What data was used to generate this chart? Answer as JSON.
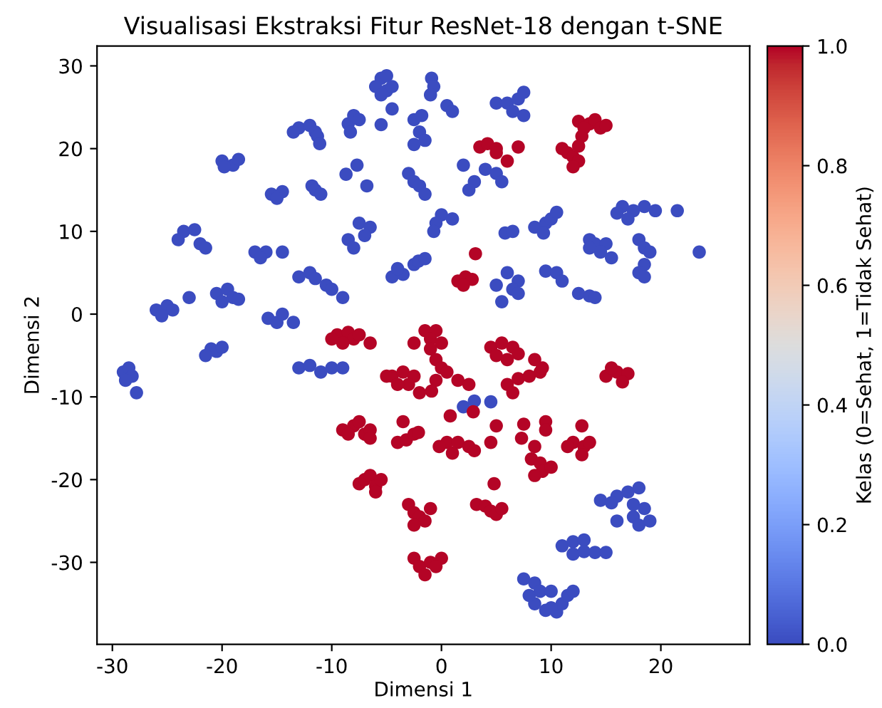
{
  "chart_data": {
    "type": "scatter",
    "title": "Visualisasi Ekstraksi Fitur ResNet-18 dengan t-SNE",
    "xlabel": "Dimensi 1",
    "ylabel": "Dimensi 2",
    "clabel": "Kelas (0=Sehat, 1=Tidak Sehat)",
    "xlim": [
      -31.4,
      28.1
    ],
    "ylim": [
      -39.9,
      32.4
    ],
    "xticks": [
      -30,
      -20,
      -10,
      0,
      10,
      20
    ],
    "yticks": [
      -30,
      -20,
      -10,
      0,
      10,
      20,
      30
    ],
    "clim": [
      0,
      1
    ],
    "cticks": [
      {
        "value": 0,
        "label": "0.0"
      },
      {
        "value": 0.2,
        "label": "0.2"
      },
      {
        "value": 0.4,
        "label": "0.4"
      },
      {
        "value": 0.6,
        "label": "0.6"
      },
      {
        "value": 0.8,
        "label": "0.8"
      },
      {
        "value": 1,
        "label": "1.0"
      }
    ],
    "marker": "circle",
    "grid": false,
    "legend": false,
    "series": [
      {
        "x": [
          -5.5,
          -5,
          -6,
          -5,
          -4.5,
          -5.5,
          -4.5,
          -5.5,
          -8.5,
          -8,
          -7.5,
          -8.3,
          -13,
          -12,
          -11.5,
          -13.5,
          -11.3,
          -11.1,
          -20,
          -19,
          -18.5,
          -19.8,
          -7.7,
          -8.7,
          -6.8,
          -15.5,
          -14.5,
          -15,
          -11.8,
          -11.5,
          -11,
          -7.5,
          -6.5,
          -7,
          -8.5,
          -8,
          -23.5,
          -22.5,
          -24,
          -22,
          -21.5,
          -17,
          -16,
          -16.5,
          -14.5,
          -13,
          -12,
          -11.5,
          -10.5,
          -10,
          -4.5,
          -3.5,
          -4,
          -2.5,
          -20.5,
          -19.5,
          -20,
          -19,
          -18.5,
          -23,
          -26,
          -25,
          -24.5,
          -25.5,
          -9,
          -15.8,
          -15,
          -14.5,
          -13.5,
          -21,
          -20.5,
          -21.5,
          -20,
          -29,
          -28.5,
          -28.2,
          -28.8,
          -27.8,
          -13,
          -12,
          -11,
          -10,
          -9,
          -0.9,
          -0.7,
          -1,
          0.5,
          1,
          -2.5,
          -2,
          -1.5,
          -2.5,
          -1.8,
          -3,
          -2.5,
          -2,
          -1.5,
          5,
          6,
          7,
          7.5,
          6.5,
          7.5,
          2,
          4,
          5,
          5.5,
          3,
          2.5,
          0,
          1,
          -0.5,
          -0.7,
          8.5,
          9.5,
          10,
          10.5,
          9.3,
          5.8,
          6.5,
          16.5,
          17.5,
          18.5,
          17,
          16,
          19.5,
          21.5,
          13.5,
          14,
          15,
          14.5,
          13.5,
          15.5,
          18,
          18.5,
          19,
          18.5,
          18,
          18.5,
          23.5,
          -2.1,
          -1.5,
          6,
          7,
          6.5,
          5,
          7,
          5.5,
          9.5,
          10.5,
          11,
          12.5,
          13.5,
          14,
          2,
          3,
          4.5,
          14.5,
          16,
          17,
          18,
          17.5,
          18.5,
          16,
          17.5,
          18,
          19,
          15.5,
          11,
          12,
          13,
          12,
          13,
          14,
          15,
          7.5,
          8.5,
          9,
          10,
          8.5,
          9.5,
          10.5,
          11,
          11.5,
          12,
          10,
          8
        ],
        "values": [
          28.5,
          28.8,
          27.5,
          27,
          27.5,
          26.5,
          24.8,
          22.9,
          23,
          24,
          23.5,
          22,
          22.5,
          22.8,
          22,
          22,
          21.5,
          20.6,
          18.5,
          18,
          18.7,
          17.8,
          18,
          16.9,
          15.5,
          14.5,
          14.8,
          14,
          15.5,
          15,
          14.5,
          11,
          10.5,
          9.5,
          9,
          8,
          10,
          10.2,
          9,
          8.5,
          8,
          7.5,
          7.5,
          6.8,
          7.5,
          4.5,
          5,
          4.3,
          3.5,
          3,
          4.5,
          4.8,
          5.5,
          6,
          2.5,
          3,
          1.5,
          2,
          1.8,
          2,
          0.5,
          1,
          0.5,
          -0.2,
          2,
          -0.5,
          -1,
          0,
          -1,
          -4.2,
          -4.5,
          -5,
          -4,
          -7,
          -6.5,
          -7.5,
          -8,
          -9.5,
          -6.5,
          -6.2,
          -7,
          -6.5,
          -6.5,
          28.5,
          27.5,
          26.5,
          25.2,
          24.5,
          23.5,
          22,
          21,
          20.5,
          24,
          17,
          16,
          15.5,
          14.5,
          25.5,
          25.5,
          26,
          26.8,
          24.5,
          24,
          18,
          17.5,
          17,
          16,
          16,
          15,
          12,
          11.5,
          11,
          10,
          10.5,
          11,
          11.5,
          12.3,
          9.8,
          9.8,
          10,
          13,
          12.5,
          13,
          11.5,
          12.2,
          12.5,
          12.5,
          9,
          8.5,
          8.5,
          7.5,
          8,
          6.8,
          9,
          8,
          7.5,
          6,
          5,
          4.5,
          7.5,
          6.4,
          6.7,
          5,
          4,
          3,
          3.5,
          2.5,
          1.5,
          5.2,
          5,
          4,
          2.5,
          2.2,
          2,
          -11.2,
          -10.5,
          -10.6,
          -22.5,
          -22,
          -21.5,
          -21,
          -23,
          -23.5,
          -25,
          -24.5,
          -25.5,
          -25,
          -22.8,
          -28,
          -27.5,
          -27.3,
          -29,
          -28.7,
          -28.8,
          -28.8,
          -32,
          -32.5,
          -33.5,
          -33.5,
          -35,
          -35.8,
          -36,
          -35,
          -34,
          -33.5,
          -35.5,
          -34
        ],
        "cvalues": [
          0,
          0,
          0,
          0,
          0,
          0,
          0,
          0,
          0,
          0,
          0,
          0,
          0,
          0,
          0,
          0,
          0,
          0,
          0,
          0,
          0,
          0,
          0,
          0,
          0,
          0,
          0,
          0,
          0,
          0,
          0,
          0,
          0,
          0,
          0,
          0,
          0,
          0,
          0,
          0,
          0,
          0,
          0,
          0,
          0,
          0,
          0,
          0,
          0,
          0,
          0,
          0,
          0,
          0,
          0,
          0,
          0,
          0,
          0,
          0,
          0,
          0,
          0,
          0,
          0,
          0,
          0,
          0,
          0,
          0,
          0,
          0,
          0,
          0,
          0,
          0,
          0,
          0,
          0,
          0,
          0,
          0,
          0,
          0,
          0,
          0,
          0,
          0,
          0,
          0,
          0,
          0,
          0,
          0,
          0,
          0,
          0,
          0,
          0,
          0,
          0,
          0,
          0,
          0,
          0,
          0,
          0,
          0,
          0,
          0,
          0,
          0,
          0,
          0,
          0,
          0,
          0,
          0,
          0,
          0,
          0,
          0,
          0,
          0,
          0,
          0,
          0,
          0,
          0,
          0,
          0,
          0,
          0,
          0,
          0,
          0,
          0,
          0,
          0,
          0,
          0,
          0,
          0,
          0,
          0,
          0,
          0,
          0,
          0,
          0,
          0,
          0,
          0,
          0,
          0,
          0,
          0,
          0,
          0,
          0,
          0,
          0,
          0,
          0,
          0,
          0,
          0,
          0,
          0,
          0,
          0,
          0,
          0,
          0,
          0,
          0,
          0,
          0,
          0,
          0,
          0,
          0,
          0,
          0,
          0,
          0,
          0
        ]
      },
      {
        "x": [
          12.5,
          13.5,
          14,
          14.5,
          13,
          15,
          12.8,
          11,
          11.5,
          12,
          12.5,
          12,
          12.5,
          3.5,
          4.2,
          5,
          5,
          7,
          6,
          3.1,
          1.5,
          2.2,
          2.8,
          2,
          -9.5,
          -8.5,
          -8,
          -9,
          -7.5,
          -6.5,
          -10,
          -1.5,
          -0.5,
          -1,
          0,
          -1,
          -2.5,
          4.5,
          5.5,
          6.5,
          7,
          5,
          6,
          -4.5,
          -3.5,
          -2.5,
          -3,
          -4,
          -5,
          -2,
          -9,
          -8,
          -7.5,
          -7,
          -6.5,
          -6.5,
          -8.5,
          -3.5,
          -4,
          -3.2,
          -2.5,
          -7.5,
          -7,
          -6.5,
          -6,
          -5.5,
          -6,
          -3,
          -2.5,
          -2,
          -1.5,
          -2.5,
          -1,
          -2.5,
          -2,
          -1.5,
          -1,
          0,
          -0.5,
          -0.5,
          0,
          0.5,
          -0.5,
          1.5,
          2.5,
          -0.9,
          6,
          7,
          8,
          9,
          9.2,
          8.5,
          6.5,
          15,
          16,
          17,
          16.5,
          15.5,
          2.9,
          0.8,
          5,
          4.5,
          0.5,
          1.5,
          2.5,
          1,
          3,
          -0.2,
          -2.1,
          7.5,
          9.5,
          9.5,
          7.3,
          8.5,
          8.2,
          9,
          9.2,
          10,
          8.5,
          12.8,
          12,
          13,
          13.5,
          12.8,
          11.5,
          4.8,
          3.2,
          4,
          4.5,
          5,
          5.5
        ],
        "values": [
          23.3,
          23,
          23.5,
          22.5,
          22.5,
          22.8,
          21.5,
          20,
          19.5,
          19,
          18.5,
          17.8,
          20.3,
          20.2,
          20.6,
          20,
          19.5,
          20.2,
          18.5,
          7.3,
          4,
          4.5,
          4.2,
          3.5,
          -2.5,
          -2.2,
          -3,
          -3.5,
          -2.5,
          -3.5,
          -3,
          -2,
          -2,
          -3,
          -3.5,
          -4.2,
          -3.5,
          -4,
          -3.5,
          -4,
          -4.8,
          -5,
          -5.5,
          -7.5,
          -7,
          -7.5,
          -8.5,
          -8.5,
          -7.5,
          -9.5,
          -14,
          -13.5,
          -13,
          -14.5,
          -14,
          -15,
          -14.5,
          -13,
          -15.5,
          -15.2,
          -14.5,
          -20.5,
          -20,
          -19.5,
          -20.8,
          -20,
          -21.5,
          -23,
          -24,
          -24.5,
          -25,
          -25.5,
          -23.5,
          -29.5,
          -30.5,
          -31.5,
          -30,
          -29.5,
          -30.5,
          -5.5,
          -6.5,
          -7,
          -8,
          -8,
          -8.5,
          -9.3,
          -8.5,
          -7.8,
          -7.5,
          -7,
          -6.5,
          -5.5,
          -9.5,
          -7.5,
          -7,
          -7.2,
          -8.2,
          -6.5,
          -11.8,
          -12.3,
          -13.5,
          -15.5,
          -15.5,
          -15.5,
          -16,
          -16.8,
          -16.5,
          -16,
          -14.3,
          -13.3,
          -13,
          -14,
          -15,
          -16,
          -17.5,
          -18,
          -19,
          -18.5,
          -19.5,
          -13.5,
          -15.5,
          -16,
          -15.5,
          -17,
          -16,
          -20.5,
          -23,
          -23.2,
          -23.8,
          -24.2,
          -23.5
        ],
        "cvalues": [
          1,
          1,
          1,
          1,
          1,
          1,
          1,
          1,
          1,
          1,
          1,
          1,
          1,
          1,
          1,
          1,
          1,
          1,
          1,
          1,
          1,
          1,
          1,
          1,
          1,
          1,
          1,
          1,
          1,
          1,
          1,
          1,
          1,
          1,
          1,
          1,
          1,
          1,
          1,
          1,
          1,
          1,
          1,
          1,
          1,
          1,
          1,
          1,
          1,
          1,
          1,
          1,
          1,
          1,
          1,
          1,
          1,
          1,
          1,
          1,
          1,
          1,
          1,
          1,
          1,
          1,
          1,
          1,
          1,
          1,
          1,
          1,
          1,
          1,
          1,
          1,
          1,
          1,
          1,
          1,
          1,
          1,
          1,
          1,
          1,
          1,
          1,
          1,
          1,
          1,
          1,
          1,
          1,
          1,
          1,
          1,
          1,
          1,
          1,
          1,
          1,
          1,
          1,
          1,
          1,
          1,
          1,
          1,
          1,
          1,
          1,
          1,
          1,
          1,
          1,
          1,
          1,
          1,
          1,
          1,
          1,
          1,
          1,
          1,
          1,
          1,
          1,
          1,
          1,
          1,
          1
        ]
      }
    ]
  }
}
